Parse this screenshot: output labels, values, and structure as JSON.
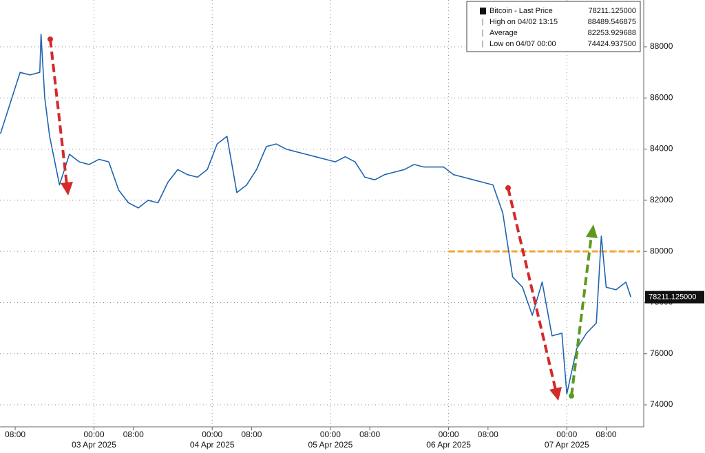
{
  "chart_data": {
    "type": "line",
    "legend": [
      {
        "name": "Bitcoin - Last Price",
        "value": "78211.125000"
      },
      {
        "name": "High on 04/02 13:15",
        "value": "88489.546875"
      },
      {
        "name": "Average",
        "value": "82253.929688"
      },
      {
        "name": "Low on 04/07 00:00",
        "value": "74424.937500"
      }
    ],
    "x": [
      "2025-04-02T05:00",
      "2025-04-02T07:00",
      "2025-04-02T09:00",
      "2025-04-02T11:00",
      "2025-04-02T13:00",
      "2025-04-02T13:15",
      "2025-04-02T14:00",
      "2025-04-02T15:00",
      "2025-04-02T17:00",
      "2025-04-02T19:00",
      "2025-04-02T21:00",
      "2025-04-02T23:00",
      "2025-04-03T01:00",
      "2025-04-03T03:00",
      "2025-04-03T05:00",
      "2025-04-03T07:00",
      "2025-04-03T09:00",
      "2025-04-03T11:00",
      "2025-04-03T13:00",
      "2025-04-03T15:00",
      "2025-04-03T17:00",
      "2025-04-03T19:00",
      "2025-04-03T21:00",
      "2025-04-03T23:00",
      "2025-04-04T01:00",
      "2025-04-04T03:00",
      "2025-04-04T05:00",
      "2025-04-04T07:00",
      "2025-04-04T09:00",
      "2025-04-04T11:00",
      "2025-04-04T13:00",
      "2025-04-04T15:00",
      "2025-04-04T17:00",
      "2025-04-04T19:00",
      "2025-04-04T21:00",
      "2025-04-04T23:00",
      "2025-04-05T01:00",
      "2025-04-05T03:00",
      "2025-04-05T05:00",
      "2025-04-05T07:00",
      "2025-04-05T09:00",
      "2025-04-05T11:00",
      "2025-04-05T13:00",
      "2025-04-05T15:00",
      "2025-04-05T17:00",
      "2025-04-05T19:00",
      "2025-04-05T21:00",
      "2025-04-05T23:00",
      "2025-04-06T01:00",
      "2025-04-06T03:00",
      "2025-04-06T05:00",
      "2025-04-06T07:00",
      "2025-04-06T09:00",
      "2025-04-06T11:00",
      "2025-04-06T13:00",
      "2025-04-06T15:00",
      "2025-04-06T17:00",
      "2025-04-06T19:00",
      "2025-04-06T21:00",
      "2025-04-06T23:00",
      "2025-04-07T00:00",
      "2025-04-07T02:00",
      "2025-04-07T04:00",
      "2025-04-07T06:00",
      "2025-04-07T07:00",
      "2025-04-07T08:00",
      "2025-04-07T10:00",
      "2025-04-07T12:00",
      "2025-04-07T13:00"
    ],
    "series": [
      {
        "name": "Bitcoin - Last Price",
        "color": "#1f63b0",
        "values": [
          84600,
          85800,
          87000,
          86900,
          87000,
          88489.546875,
          86000,
          84500,
          82600,
          83800,
          83500,
          83400,
          83600,
          83500,
          82400,
          81900,
          81700,
          82000,
          81900,
          82700,
          83200,
          83000,
          82900,
          83200,
          84200,
          84500,
          82300,
          82600,
          83200,
          84100,
          84200,
          84000,
          83900,
          83800,
          83700,
          83600,
          83500,
          83700,
          83500,
          82900,
          82800,
          83000,
          83100,
          83200,
          83400,
          83300,
          83300,
          83300,
          83000,
          82900,
          82800,
          82700,
          82600,
          81500,
          79000,
          78600,
          77500,
          78800,
          76700,
          76800,
          74424.9375,
          76200,
          76800,
          77200,
          80600,
          78600,
          78500,
          78800,
          78211.125
        ]
      }
    ],
    "hline": {
      "value": 80000,
      "from": "2025-04-06T00:00",
      "color": "#f0a830"
    },
    "xlim": [
      "2025-04-02T04:55",
      "2025-04-07T14:55"
    ],
    "ylim": [
      73140,
      89830
    ],
    "yticks": [
      74000,
      76000,
      78000,
      80000,
      82000,
      84000,
      86000,
      88000
    ],
    "xticks": [
      {
        "value": "2025-04-02T08:00",
        "label": "08:00"
      },
      {
        "value": "2025-04-03T00:00",
        "label": "00:00"
      },
      {
        "value": "2025-04-03T08:00",
        "label": "08:00"
      },
      {
        "value": "2025-04-04T00:00",
        "label": "00:00"
      },
      {
        "value": "2025-04-04T08:00",
        "label": "08:00"
      },
      {
        "value": "2025-04-05T00:00",
        "label": "00:00"
      },
      {
        "value": "2025-04-05T08:00",
        "label": "08:00"
      },
      {
        "value": "2025-04-06T00:00",
        "label": "00:00"
      },
      {
        "value": "2025-04-06T08:00",
        "label": "08:00"
      },
      {
        "value": "2025-04-07T00:00",
        "label": "00:00"
      },
      {
        "value": "2025-04-07T08:00",
        "label": "08:00"
      }
    ],
    "xdates": [
      {
        "value": "2025-04-03T00:00",
        "label": "03 Apr 2025"
      },
      {
        "value": "2025-04-04T00:00",
        "label": "04 Apr 2025"
      },
      {
        "value": "2025-04-05T00:00",
        "label": "05 Apr 2025"
      },
      {
        "value": "2025-04-06T00:00",
        "label": "06 Apr 2025"
      },
      {
        "value": "2025-04-07T00:00",
        "label": "07 Apr 2025"
      }
    ],
    "grid": true
  }
}
